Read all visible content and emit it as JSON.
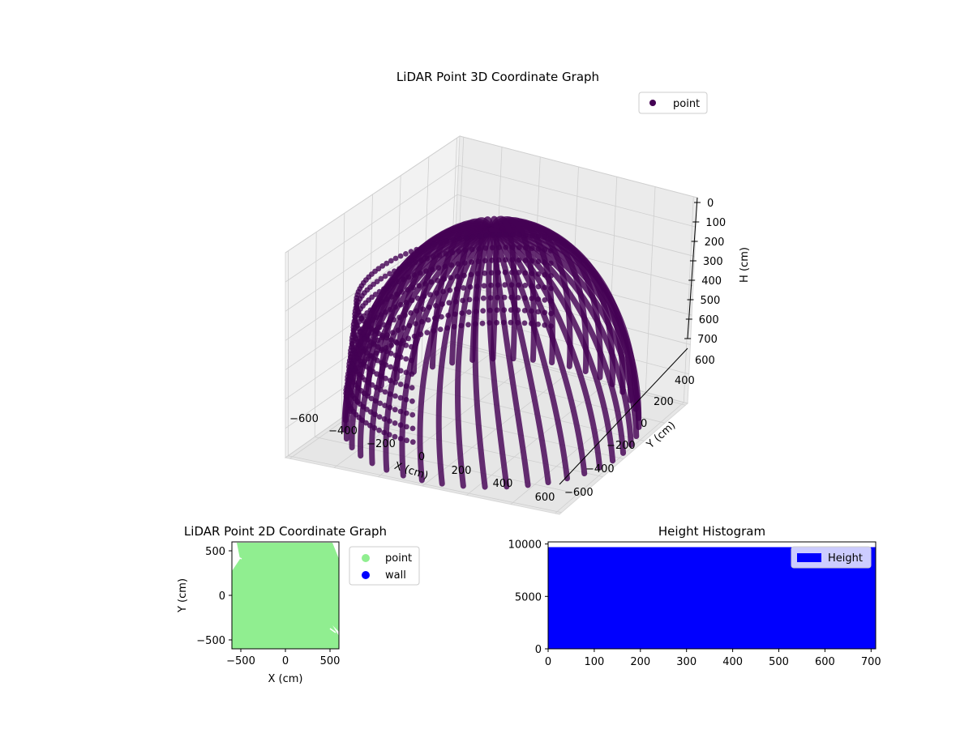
{
  "chart_data": [
    {
      "type": "scatter",
      "projection": "3d",
      "title": "LiDAR Point 3D Coordinate Graph",
      "xlabel": "X (cm)",
      "ylabel": "Y (cm)",
      "zlabel": "H (cm)",
      "xlim": [
        -620,
        620
      ],
      "ylim": [
        -620,
        620
      ],
      "zlim": [
        0,
        700
      ],
      "z_inverted": true,
      "x_ticks": [
        "−600",
        "−400",
        "−200",
        "0",
        "200",
        "400",
        "600"
      ],
      "y_ticks": [
        "−600",
        "−400",
        "−200",
        "0",
        "200",
        "400",
        "600"
      ],
      "z_ticks": [
        "0",
        "100",
        "200",
        "300",
        "400",
        "500",
        "600",
        "700"
      ],
      "grid": true,
      "legend": {
        "placement": "upper-right",
        "entries": [
          "point"
        ]
      },
      "series": [
        {
          "name": "point",
          "color": "#440154",
          "description_shape": "hemispherical dome of scan rings converging at the bottom center",
          "x_range": [
            -620,
            620
          ],
          "y_range": [
            -620,
            620
          ],
          "h_range": [
            0,
            700
          ]
        }
      ]
    },
    {
      "type": "scatter",
      "title": "LiDAR Point 2D Coordinate Graph",
      "xlabel": "X (cm)",
      "ylabel": "Y (cm)",
      "xlim": [
        -600,
        600
      ],
      "ylim": [
        -600,
        600
      ],
      "x_ticks": [
        "−500",
        "0",
        "500"
      ],
      "y_ticks": [
        "−500",
        "0",
        "500"
      ],
      "legend": {
        "placement": "outside-right",
        "entries": [
          "point",
          "wall"
        ]
      },
      "series": [
        {
          "name": "point",
          "color": "#90ee90"
        },
        {
          "name": "wall",
          "color": "#0000ff"
        }
      ]
    },
    {
      "type": "bar",
      "title": "Height Histogram",
      "xlabel": "",
      "ylabel": "",
      "xlim": [
        0,
        710
      ],
      "ylim": [
        0,
        10200
      ],
      "x_ticks": [
        "0",
        "100",
        "200",
        "300",
        "400",
        "500",
        "600",
        "700"
      ],
      "y_ticks": [
        "0",
        "5000",
        "10000"
      ],
      "legend": {
        "placement": "upper-right",
        "entries": [
          "Height"
        ]
      },
      "series": [
        {
          "name": "Height",
          "color": "#0000ff",
          "bin_range": [
            0,
            710
          ],
          "count": 9700
        }
      ]
    }
  ]
}
